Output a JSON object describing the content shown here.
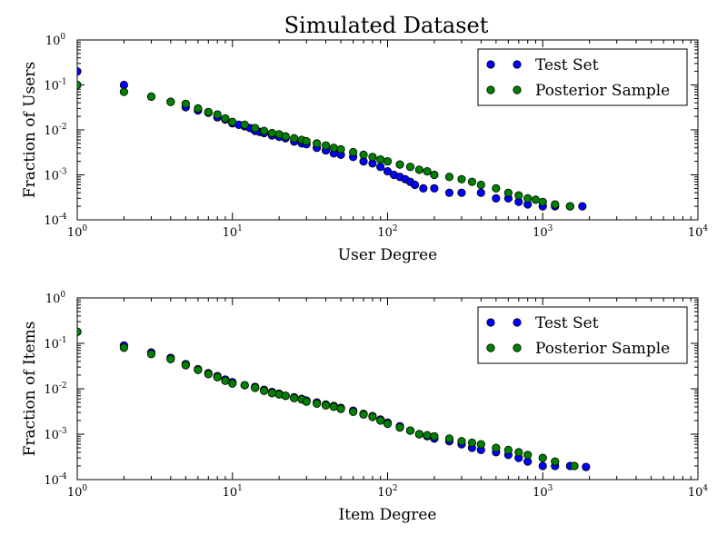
{
  "chart_data": [
    {
      "type": "scatter",
      "title": "Simulated Dataset",
      "xlabel": "User Degree",
      "ylabel": "Fraction of Users",
      "xscale": "log",
      "yscale": "log",
      "xlim": [
        1,
        10000
      ],
      "ylim": [
        0.0001,
        1
      ],
      "xticks": [
        "10^0",
        "10^1",
        "10^2",
        "10^3",
        "10^4"
      ],
      "yticks": [
        "10^-4",
        "10^-3",
        "10^-2",
        "10^-1",
        "10^0"
      ],
      "legend": "top-right",
      "grid": false,
      "series": [
        {
          "name": "Test Set",
          "color": "#0000ff",
          "points": [
            [
              1,
              0.2
            ],
            [
              2,
              0.1
            ],
            [
              3,
              0.055
            ],
            [
              4,
              0.042
            ],
            [
              5,
              0.032
            ],
            [
              6,
              0.027
            ],
            [
              7,
              0.024
            ],
            [
              8,
              0.019
            ],
            [
              9,
              0.017
            ],
            [
              10,
              0.014
            ],
            [
              11,
              0.013
            ],
            [
              12,
              0.012
            ],
            [
              13,
              0.011
            ],
            [
              14,
              0.0095
            ],
            [
              15,
              0.009
            ],
            [
              16,
              0.0085
            ],
            [
              18,
              0.0075
            ],
            [
              20,
              0.007
            ],
            [
              22,
              0.0065
            ],
            [
              25,
              0.0055
            ],
            [
              28,
              0.005
            ],
            [
              30,
              0.0048
            ],
            [
              35,
              0.004
            ],
            [
              40,
              0.0035
            ],
            [
              45,
              0.003
            ],
            [
              50,
              0.0028
            ],
            [
              60,
              0.0025
            ],
            [
              70,
              0.002
            ],
            [
              80,
              0.0018
            ],
            [
              90,
              0.0015
            ],
            [
              100,
              0.0012
            ],
            [
              110,
              0.001
            ],
            [
              120,
              0.0009
            ],
            [
              130,
              0.0008
            ],
            [
              140,
              0.0007
            ],
            [
              150,
              0.0006
            ],
            [
              170,
              0.0005
            ],
            [
              200,
              0.0005
            ],
            [
              250,
              0.0004
            ],
            [
              300,
              0.0004
            ],
            [
              400,
              0.0004
            ],
            [
              500,
              0.0003
            ],
            [
              600,
              0.0003
            ],
            [
              700,
              0.00025
            ],
            [
              800,
              0.00022
            ],
            [
              1000,
              0.0002
            ],
            [
              1200,
              0.0002
            ],
            [
              1500,
              0.0002
            ],
            [
              1800,
              0.0002
            ]
          ]
        },
        {
          "name": "Posterior Sample",
          "color": "#008000",
          "points": [
            [
              1,
              0.1
            ],
            [
              2,
              0.07
            ],
            [
              3,
              0.055
            ],
            [
              4,
              0.042
            ],
            [
              5,
              0.038
            ],
            [
              6,
              0.03
            ],
            [
              7,
              0.025
            ],
            [
              8,
              0.022
            ],
            [
              9,
              0.018
            ],
            [
              10,
              0.015
            ],
            [
              12,
              0.013
            ],
            [
              14,
              0.011
            ],
            [
              16,
              0.0095
            ],
            [
              18,
              0.0085
            ],
            [
              20,
              0.008
            ],
            [
              22,
              0.0072
            ],
            [
              25,
              0.0065
            ],
            [
              28,
              0.006
            ],
            [
              30,
              0.0056
            ],
            [
              35,
              0.005
            ],
            [
              40,
              0.0045
            ],
            [
              45,
              0.004
            ],
            [
              50,
              0.0037
            ],
            [
              60,
              0.0032
            ],
            [
              70,
              0.0028
            ],
            [
              80,
              0.0025
            ],
            [
              90,
              0.0022
            ],
            [
              100,
              0.002
            ],
            [
              120,
              0.0017
            ],
            [
              140,
              0.0015
            ],
            [
              160,
              0.0013
            ],
            [
              180,
              0.0012
            ],
            [
              200,
              0.001
            ],
            [
              250,
              0.0009
            ],
            [
              300,
              0.0008
            ],
            [
              350,
              0.0007
            ],
            [
              400,
              0.0006
            ],
            [
              500,
              0.0005
            ],
            [
              600,
              0.0004
            ],
            [
              700,
              0.00035
            ],
            [
              800,
              0.0003
            ],
            [
              900,
              0.00028
            ],
            [
              1000,
              0.00025
            ],
            [
              1200,
              0.00022
            ],
            [
              1500,
              0.0002
            ]
          ]
        }
      ]
    },
    {
      "type": "scatter",
      "title": "",
      "xlabel": "Item Degree",
      "ylabel": "Fraction of Items",
      "xscale": "log",
      "yscale": "log",
      "xlim": [
        1,
        10000
      ],
      "ylim": [
        0.0001,
        1
      ],
      "xticks": [
        "10^0",
        "10^1",
        "10^2",
        "10^3",
        "10^4"
      ],
      "yticks": [
        "10^-4",
        "10^-3",
        "10^-2",
        "10^-1",
        "10^0"
      ],
      "legend": "top-right",
      "grid": false,
      "series": [
        {
          "name": "Test Set",
          "color": "#0000ff",
          "points": [
            [
              1,
              0.18
            ],
            [
              2,
              0.09
            ],
            [
              3,
              0.063
            ],
            [
              4,
              0.048
            ],
            [
              5,
              0.035
            ],
            [
              6,
              0.027
            ],
            [
              7,
              0.022
            ],
            [
              8,
              0.019
            ],
            [
              9,
              0.016
            ],
            [
              10,
              0.014
            ],
            [
              12,
              0.012
            ],
            [
              14,
              0.011
            ],
            [
              16,
              0.0095
            ],
            [
              18,
              0.0085
            ],
            [
              20,
              0.0078
            ],
            [
              22,
              0.007
            ],
            [
              25,
              0.0065
            ],
            [
              28,
              0.006
            ],
            [
              30,
              0.0055
            ],
            [
              35,
              0.005
            ],
            [
              40,
              0.0045
            ],
            [
              45,
              0.0042
            ],
            [
              50,
              0.0038
            ],
            [
              60,
              0.0033
            ],
            [
              70,
              0.0028
            ],
            [
              80,
              0.0025
            ],
            [
              90,
              0.0021
            ],
            [
              100,
              0.0018
            ],
            [
              120,
              0.0015
            ],
            [
              140,
              0.0012
            ],
            [
              160,
              0.001
            ],
            [
              180,
              0.0009
            ],
            [
              200,
              0.0008
            ],
            [
              250,
              0.0007
            ],
            [
              300,
              0.0006
            ],
            [
              350,
              0.0005
            ],
            [
              400,
              0.00045
            ],
            [
              500,
              0.0004
            ],
            [
              600,
              0.00035
            ],
            [
              700,
              0.0003
            ],
            [
              800,
              0.00025
            ],
            [
              1000,
              0.0002
            ],
            [
              1200,
              0.0002
            ],
            [
              1500,
              0.0002
            ],
            [
              1900,
              0.00019
            ]
          ]
        },
        {
          "name": "Posterior Sample",
          "color": "#008000",
          "points": [
            [
              1,
              0.18
            ],
            [
              2,
              0.08
            ],
            [
              3,
              0.058
            ],
            [
              4,
              0.045
            ],
            [
              5,
              0.033
            ],
            [
              6,
              0.026
            ],
            [
              7,
              0.021
            ],
            [
              8,
              0.018
            ],
            [
              9,
              0.015
            ],
            [
              10,
              0.013
            ],
            [
              12,
              0.012
            ],
            [
              14,
              0.0105
            ],
            [
              16,
              0.009
            ],
            [
              18,
              0.008
            ],
            [
              20,
              0.0075
            ],
            [
              22,
              0.007
            ],
            [
              25,
              0.0062
            ],
            [
              28,
              0.0058
            ],
            [
              30,
              0.0052
            ],
            [
              35,
              0.0047
            ],
            [
              40,
              0.0043
            ],
            [
              45,
              0.004
            ],
            [
              50,
              0.0036
            ],
            [
              60,
              0.0031
            ],
            [
              70,
              0.0027
            ],
            [
              80,
              0.0024
            ],
            [
              90,
              0.002
            ],
            [
              100,
              0.0017
            ],
            [
              120,
              0.0014
            ],
            [
              140,
              0.0012
            ],
            [
              160,
              0.001
            ],
            [
              180,
              0.00095
            ],
            [
              200,
              0.0009
            ],
            [
              250,
              0.0008
            ],
            [
              300,
              0.0007
            ],
            [
              350,
              0.00065
            ],
            [
              400,
              0.0006
            ],
            [
              500,
              0.0005
            ],
            [
              600,
              0.00045
            ],
            [
              700,
              0.0004
            ],
            [
              800,
              0.00035
            ],
            [
              1000,
              0.0003
            ],
            [
              1200,
              0.00025
            ],
            [
              1600,
              0.0002
            ]
          ]
        }
      ]
    }
  ]
}
